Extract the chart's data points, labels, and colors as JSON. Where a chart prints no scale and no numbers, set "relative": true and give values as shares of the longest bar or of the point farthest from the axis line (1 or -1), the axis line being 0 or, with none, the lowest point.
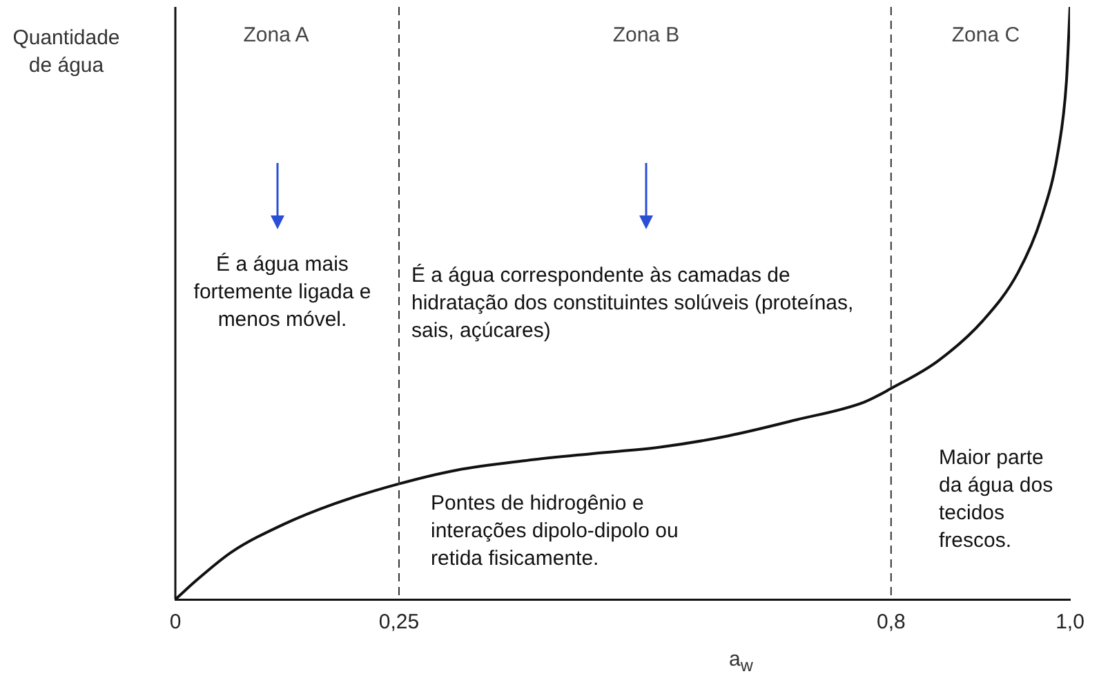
{
  "chart_data": {
    "type": "line",
    "relative": true,
    "xlabel": "a$_{w}$",
    "ylabel": "Quantidade de água",
    "x": [
      0,
      0.025,
      0.063,
      0.12,
      0.177,
      0.25,
      0.314,
      0.39,
      0.466,
      0.542,
      0.618,
      0.694,
      0.77,
      0.8,
      0.852,
      0.903,
      0.942,
      0.968,
      0.987,
      0.996,
      1.0
    ],
    "series": [
      {
        "color": "#111111",
        "values": [
          0,
          0.034,
          0.08,
          0.126,
          0.161,
          0.195,
          0.218,
          0.234,
          0.246,
          0.257,
          0.276,
          0.303,
          0.333,
          0.356,
          0.402,
          0.471,
          0.552,
          0.644,
          0.759,
          0.874,
          1
        ]
      }
    ],
    "xlim": [
      0,
      1
    ],
    "xticks": [
      {
        "value": 0,
        "label": "0"
      },
      {
        "value": 0.25,
        "label": "0,25"
      },
      {
        "value": 0.8,
        "label": "0,8"
      },
      {
        "value": 1.0,
        "label": "1,0"
      }
    ],
    "ref_lines": [
      {
        "axis": "x",
        "value": 0.25,
        "line_style": "dashed",
        "color": "#333333"
      },
      {
        "axis": "x",
        "value": 0.8,
        "line_style": "dashed",
        "color": "#333333"
      }
    ],
    "annotations": [
      "Zona A",
      "Zona B",
      "Zona C",
      "É a água mais fortemente ligada e menos móvel.",
      "É a água correspondente às camadas de hidratação dos constituintes solúveis (proteínas, sais, açúcares)",
      "Pontes de hidrogênio e interações dipolo-dipolo ou retida fisicamente.",
      "Maior parte da água dos tecidos frescos."
    ],
    "grid": false,
    "legend": false,
    "marker": "none",
    "line_style": "solid",
    "tick_labels": "x"
  }
}
